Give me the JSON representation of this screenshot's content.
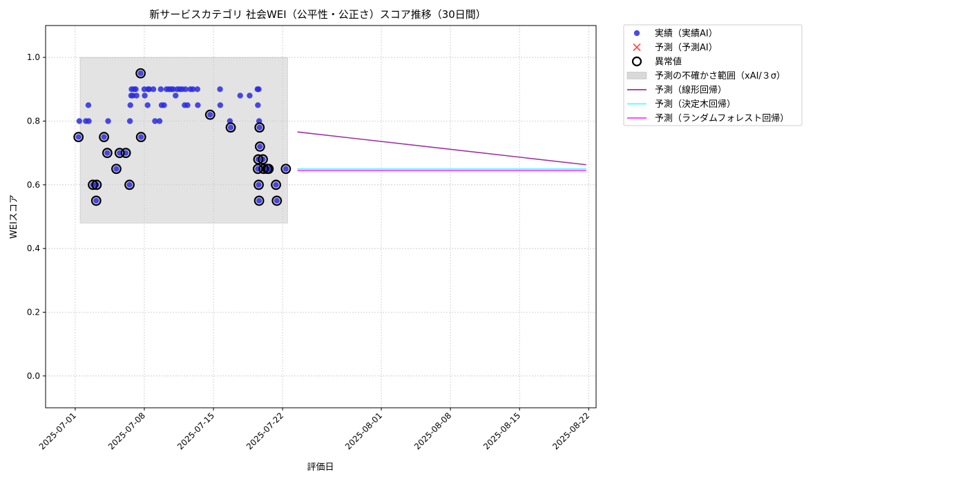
{
  "chart_data": {
    "type": "scatter",
    "title": "新サービスカテゴリ 社会WEI（公平性・公正さ）スコア推移（30日間）",
    "xlabel": "評価日",
    "ylabel": "WEIスコア",
    "xlim": [
      "2025-06-28",
      "2025-08-22 18:00"
    ],
    "ylim": [
      -0.1,
      1.1
    ],
    "yticks": [
      0.0,
      0.2,
      0.4,
      0.6,
      0.8,
      1.0
    ],
    "yticklabels": [
      "0.0",
      "0.2",
      "0.4",
      "0.6",
      "0.8",
      "1.0"
    ],
    "xticks": [
      "2025-07-01",
      "2025-07-08",
      "2025-07-15",
      "2025-07-22",
      "2025-08-01",
      "2025-08-08",
      "2025-08-15",
      "2025-08-22"
    ],
    "grid": true,
    "legend_placement": "outside-top-right",
    "legend": [
      {
        "label": "実績（実績AI）",
        "kind": "dot",
        "color": "#2b2bdf"
      },
      {
        "label": "予測（予測AI）",
        "kind": "x",
        "color": "#ff4d4d"
      },
      {
        "label": "異常値",
        "kind": "ring",
        "color": "#000000"
      },
      {
        "label": "予測の不確かさ範囲（xAI/３σ）",
        "kind": "box",
        "color": "#d9d9d9"
      },
      {
        "label": "予測（線形回帰）",
        "kind": "line",
        "color": "#9b30a0"
      },
      {
        "label": "予測（決定木回帰）",
        "kind": "line",
        "color": "#4dffff"
      },
      {
        "label": "予測（ランダムフォレスト回帰）",
        "kind": "line",
        "color": "#ff33ff"
      }
    ],
    "uncertainty_band": {
      "x": [
        "2025-07-01 12:00",
        "2025-07-22 12:00"
      ],
      "y": [
        0.48,
        1.0
      ]
    },
    "series": [
      {
        "kind": "actual",
        "color": "#2b2bdf",
        "points": [
          [
            "2025-07-01 08:00",
            0.75
          ],
          [
            "2025-07-01 10:00",
            0.8
          ],
          [
            "2025-07-02 02:00",
            0.8
          ],
          [
            "2025-07-02 08:00",
            0.85
          ],
          [
            "2025-07-02 09:00",
            0.8
          ],
          [
            "2025-07-02 19:00",
            0.6
          ],
          [
            "2025-07-03 04:00",
            0.6
          ],
          [
            "2025-07-03 03:00",
            0.55
          ],
          [
            "2025-07-03 22:00",
            0.75
          ],
          [
            "2025-07-04 08:00",
            0.8
          ],
          [
            "2025-07-04 06:00",
            0.7
          ],
          [
            "2025-07-05 04:00",
            0.65
          ],
          [
            "2025-07-05 12:00",
            0.7
          ],
          [
            "2025-07-06 03:00",
            0.7
          ],
          [
            "2025-07-06 12:00",
            0.6
          ],
          [
            "2025-07-06 13:00",
            0.8
          ],
          [
            "2025-07-06 14:00",
            0.85
          ],
          [
            "2025-07-06 16:00",
            0.88
          ],
          [
            "2025-07-06 17:00",
            0.9
          ],
          [
            "2025-07-06 20:00",
            0.88
          ],
          [
            "2025-07-06 23:00",
            0.9
          ],
          [
            "2025-07-07 03:00",
            0.9
          ],
          [
            "2025-07-07 05:00",
            0.88
          ],
          [
            "2025-07-07 15:00",
            0.95
          ],
          [
            "2025-07-07 16:00",
            0.75
          ],
          [
            "2025-07-08 00:00",
            0.9
          ],
          [
            "2025-07-08 01:00",
            0.88
          ],
          [
            "2025-07-08 08:00",
            0.85
          ],
          [
            "2025-07-08 09:00",
            0.9
          ],
          [
            "2025-07-08 12:00",
            0.9
          ],
          [
            "2025-07-08 22:00",
            0.9
          ],
          [
            "2025-07-09 02:00",
            0.8
          ],
          [
            "2025-07-09 13:00",
            0.8
          ],
          [
            "2025-07-09 16:00",
            0.9
          ],
          [
            "2025-07-09 18:00",
            0.85
          ],
          [
            "2025-07-10 00:00",
            0.85
          ],
          [
            "2025-07-10 06:00",
            0.9
          ],
          [
            "2025-07-10 12:00",
            0.9
          ],
          [
            "2025-07-10 17:00",
            0.9
          ],
          [
            "2025-07-10 22:00",
            0.9
          ],
          [
            "2025-07-11 04:00",
            0.88
          ],
          [
            "2025-07-11 08:00",
            0.9
          ],
          [
            "2025-07-11 14:00",
            0.9
          ],
          [
            "2025-07-11 20:00",
            0.9
          ],
          [
            "2025-07-12 02:00",
            0.85
          ],
          [
            "2025-07-12 04:00",
            0.9
          ],
          [
            "2025-07-12 09:00",
            0.85
          ],
          [
            "2025-07-12 16:00",
            0.9
          ],
          [
            "2025-07-12 22:00",
            0.9
          ],
          [
            "2025-07-13 09:00",
            0.9
          ],
          [
            "2025-07-13 10:00",
            0.85
          ],
          [
            "2025-07-14 16:00",
            0.82
          ],
          [
            "2025-07-15 16:00",
            0.9
          ],
          [
            "2025-07-15 16:30",
            0.85
          ],
          [
            "2025-07-16 16:00",
            0.8
          ],
          [
            "2025-07-16 18:00",
            0.78
          ],
          [
            "2025-07-17 17:00",
            0.88
          ],
          [
            "2025-07-18 16:00",
            0.88
          ],
          [
            "2025-07-19 11:00",
            0.9
          ],
          [
            "2025-07-19 12:00",
            0.85
          ],
          [
            "2025-07-19 14:00",
            0.9
          ],
          [
            "2025-07-19 15:00",
            0.8
          ],
          [
            "2025-07-19 16:00",
            0.78
          ],
          [
            "2025-07-19 17:00",
            0.72
          ],
          [
            "2025-07-19 13:00",
            0.68
          ],
          [
            "2025-07-19 12:00",
            0.65
          ],
          [
            "2025-07-19 14:00",
            0.6
          ],
          [
            "2025-07-19 15:00",
            0.55
          ],
          [
            "2025-07-20 00:00",
            0.68
          ],
          [
            "2025-07-20 02:00",
            0.65
          ],
          [
            "2025-07-20 11:00",
            0.65
          ],
          [
            "2025-07-20 14:00",
            0.65
          ],
          [
            "2025-07-21 08:00",
            0.6
          ],
          [
            "2025-07-21 10:00",
            0.55
          ],
          [
            "2025-07-22 08:00",
            0.65
          ]
        ]
      }
    ],
    "anomalies": [
      [
        "2025-07-01 08:00",
        0.75
      ],
      [
        "2025-07-02 19:00",
        0.6
      ],
      [
        "2025-07-03 04:00",
        0.6
      ],
      [
        "2025-07-03 03:00",
        0.55
      ],
      [
        "2025-07-03 22:00",
        0.75
      ],
      [
        "2025-07-04 06:00",
        0.7
      ],
      [
        "2025-07-05 04:00",
        0.65
      ],
      [
        "2025-07-05 12:00",
        0.7
      ],
      [
        "2025-07-06 03:00",
        0.7
      ],
      [
        "2025-07-06 12:00",
        0.6
      ],
      [
        "2025-07-07 15:00",
        0.95
      ],
      [
        "2025-07-07 16:00",
        0.75
      ],
      [
        "2025-07-14 16:00",
        0.82
      ],
      [
        "2025-07-16 18:00",
        0.78
      ],
      [
        "2025-07-19 16:00",
        0.78
      ],
      [
        "2025-07-19 17:00",
        0.72
      ],
      [
        "2025-07-19 13:00",
        0.68
      ],
      [
        "2025-07-19 12:00",
        0.65
      ],
      [
        "2025-07-19 14:00",
        0.6
      ],
      [
        "2025-07-19 15:00",
        0.55
      ],
      [
        "2025-07-20 00:00",
        0.68
      ],
      [
        "2025-07-20 02:00",
        0.65
      ],
      [
        "2025-07-20 11:00",
        0.65
      ],
      [
        "2025-07-20 14:00",
        0.65
      ],
      [
        "2025-07-21 08:00",
        0.6
      ],
      [
        "2025-07-21 10:00",
        0.55
      ],
      [
        "2025-07-22 08:00",
        0.65
      ]
    ],
    "forecasts": [
      {
        "color": "#9b30a0",
        "x": [
          "2025-07-23 12:00",
          "2025-08-21 18:00"
        ],
        "y": [
          0.766,
          0.663
        ]
      },
      {
        "color": "#4dffff",
        "x": [
          "2025-07-23 12:00",
          "2025-08-21 18:00"
        ],
        "y": [
          0.65,
          0.65
        ]
      },
      {
        "color": "#ff33ff",
        "x": [
          "2025-07-23 12:00",
          "2025-08-21 18:00"
        ],
        "y": [
          0.645,
          0.645
        ]
      }
    ]
  }
}
